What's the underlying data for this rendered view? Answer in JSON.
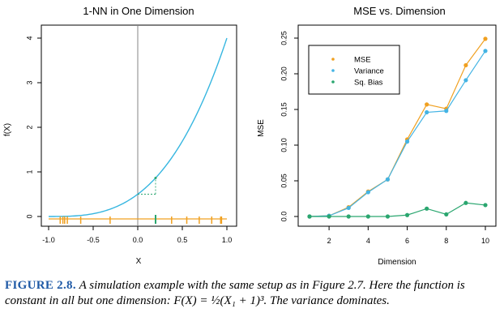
{
  "colors": {
    "curve": "#36b6e0",
    "orange": "#f0a020",
    "green": "#2aa66f",
    "variance": "#44b4e4",
    "caption_label": "#1f5aa6"
  },
  "caption": {
    "label": "FIGURE 2.8.",
    "text": "A simulation example with the same setup as in Figure 2.7. Here the function is constant in all but one dimension: F(X) = ½(X₁ + 1)³. The variance dominates."
  },
  "chart_data": [
    {
      "type": "line",
      "title": "1-NN in One Dimension",
      "xlabel": "X",
      "ylabel": "f(X)",
      "xlim": [
        -1.0,
        1.0
      ],
      "ylim": [
        0,
        4
      ],
      "x_ticks": [
        "-1.0",
        "-0.5",
        "0.0",
        "0.5",
        "1.0"
      ],
      "y_ticks": [
        "0",
        "1",
        "2",
        "3",
        "4"
      ],
      "function": "0.5*(x+1)^3",
      "target_x": 0.0,
      "nearest_neighbor": {
        "x": 0.2,
        "y": 0.864
      },
      "rug_orange_x": [
        -0.87,
        -0.84,
        -0.82,
        -0.79,
        -0.64,
        -0.31,
        0.38,
        0.55,
        0.69,
        0.83,
        0.93,
        0.94
      ],
      "rug_green_x": [
        0.2
      ]
    },
    {
      "type": "line",
      "title": "MSE  vs. Dimension",
      "xlabel": "Dimension",
      "ylabel": "MSE",
      "xlim": [
        1,
        10
      ],
      "ylim": [
        0,
        0.25
      ],
      "x_ticks": [
        "2",
        "4",
        "6",
        "8",
        "10"
      ],
      "y_ticks": [
        "0.0",
        "0.05",
        "0.10",
        "0.15",
        "0.20",
        "0.25"
      ],
      "legend": "top-left",
      "x": [
        1,
        2,
        3,
        4,
        5,
        6,
        7,
        8,
        9,
        10
      ],
      "series": [
        {
          "name": "MSE",
          "color": "#f0a020",
          "values": [
            0.0,
            0.001,
            0.013,
            0.035,
            0.052,
            0.108,
            0.157,
            0.151,
            0.212,
            0.249
          ]
        },
        {
          "name": "Variance",
          "color": "#44b4e4",
          "values": [
            0.0,
            0.001,
            0.012,
            0.034,
            0.052,
            0.105,
            0.146,
            0.148,
            0.191,
            0.232
          ]
        },
        {
          "name": "Sq. Bias",
          "color": "#2aa66f",
          "values": [
            0.0,
            0.0,
            0.0,
            0.0,
            0.0,
            0.002,
            0.011,
            0.003,
            0.019,
            0.016
          ]
        }
      ]
    }
  ]
}
